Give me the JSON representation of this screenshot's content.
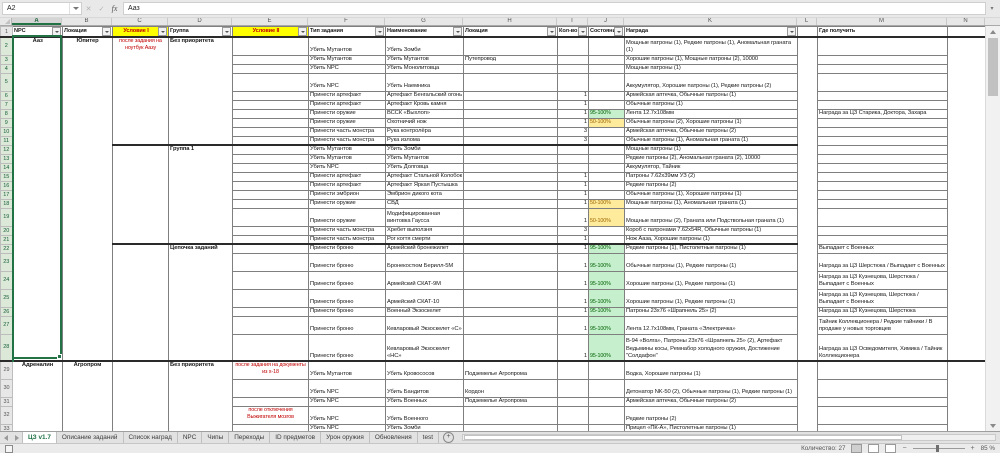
{
  "formula_bar": {
    "name_box": "A2",
    "formula": "Ааз",
    "fx_label": "fx",
    "cancel_label": "✕",
    "confirm_label": "✓",
    "expand_label": "▾"
  },
  "sheet": {
    "column_letters": [
      "A",
      "B",
      "C",
      "D",
      "E",
      "F",
      "G",
      "H",
      "I",
      "J",
      "K",
      "L",
      "M",
      "N"
    ],
    "selected_letter": "A",
    "headers": [
      {
        "label": "NPC",
        "filter": true
      },
      {
        "label": "Локация",
        "filter": true
      },
      {
        "label": "Условие I",
        "filter": true,
        "yellow": true
      },
      {
        "label": "Группа",
        "filter": true
      },
      {
        "label": "Условие II",
        "filter": true,
        "yellow": true
      },
      {
        "label": "Тип задания",
        "filter": true
      },
      {
        "label": "Наименование",
        "filter": true
      },
      {
        "label": "Локация",
        "filter": true
      },
      {
        "label": "Кол-во",
        "filter": true
      },
      {
        "label": "Состояние",
        "filter": true
      },
      {
        "label": "Награда",
        "filter": true
      },
      {
        "label": "",
        "filter": false
      },
      {
        "label": "Где получить",
        "filter": false
      },
      {
        "label": "",
        "filter": false
      }
    ],
    "colors": {
      "accent_green": "#217346",
      "state_good_bg": "#C6EFCE",
      "state_good_text": "#006100",
      "state_neutral_bg": "#FFEB9C",
      "state_neutral_text": "#9C6500",
      "condition_text": "#C00000",
      "header_highlight": "#FFFF00"
    },
    "rows": [
      {
        "n": 2,
        "h": 2,
        "top": "block",
        "a": "Ааз",
        "b": "Юпитер",
        "c": "после задания на ноутбук Аазу",
        "d": "Без приоритета",
        "f": "Убить Мутантов",
        "g": "Убить Зомби",
        "k": "Мощные патроны (1), Редкие патроны (1), Аномальная граната (1)"
      },
      {
        "n": 3,
        "f": "Убить Мутантов",
        "g": "Убить Мутантов",
        "loc": "Путепровод",
        "k": "Хорошие патроны (1), Мощные патроны (2), 10000"
      },
      {
        "n": 4,
        "f": "Убить NPC",
        "g": "Убить Монолитовца",
        "k": "Мощные патроны (1)"
      },
      {
        "n": 5,
        "h": 2,
        "f": "Убить NPC",
        "g": "Убить Наемника",
        "k": "Аккумулятор, Хорошие патроны (1), Редкие патроны (2)"
      },
      {
        "n": 6,
        "f": "Принести артефакт",
        "g": "Артефакт Бенгальский огонь",
        "qty": "1",
        "k": "Армейская аптечка, Обычные патроны (1)"
      },
      {
        "n": 7,
        "f": "Принести артефакт",
        "g": "Артефакт Кровь камня",
        "qty": "1",
        "k": "Обычные патроны (1)"
      },
      {
        "n": 8,
        "f": "Принести оружие",
        "g": "ВССК «Выхлоп»",
        "qty": "1",
        "state": "95-100%",
        "stc": "green",
        "k": "Лента 12.7x108мм",
        "m": "Награда за ЦЗ Старика, Доктора, Захара"
      },
      {
        "n": 9,
        "f": "Принести оружие",
        "g": "Охотничий нож",
        "qty": "1",
        "state": "50-100%",
        "stc": "orange",
        "k": "Обычные патроны (2), Хорошие патроны (1)"
      },
      {
        "n": 10,
        "f": "Принести часть монстра",
        "g": "Рука контролёра",
        "qty": "3",
        "k": "Армейская аптечка, Обычные патроны (2)"
      },
      {
        "n": 11,
        "f": "Принести часть монстра",
        "g": "Рука излома",
        "qty": "3",
        "k": "Обычные патроны (1), Аномальная граната (1)"
      },
      {
        "n": 12,
        "top": "group",
        "d": "Группа 1",
        "f": "Убить Мутантов",
        "g": "Убить Зомби",
        "k": "Мощные патроны (1)"
      },
      {
        "n": 13,
        "f": "Убить Мутантов",
        "g": "Убить Мутантов",
        "k": "Редкие патроны (2), Аномальная граната (2), 10000"
      },
      {
        "n": 14,
        "f": "Убить NPC",
        "g": "Убить Долговца",
        "k": "Аккумулятор, Тайник"
      },
      {
        "n": 15,
        "f": "Принести артефакт",
        "g": "Артефакт Стальной Колобок",
        "qty": "1",
        "k": "Патроны 7.62x39мм УЗ (2)"
      },
      {
        "n": 16,
        "f": "Принести артефакт",
        "g": "Артефакт Яркая Пустышка",
        "qty": "1",
        "k": "Редкие патроны (2)"
      },
      {
        "n": 17,
        "f": "Принести эмбрион",
        "g": "Эмбрион дикого кота",
        "qty": "1",
        "k": "Обычные патроны (1), Хорошие патроны (1)"
      },
      {
        "n": 18,
        "f": "Принести оружие",
        "g": "СВД",
        "qty": "1",
        "state": "50-100%",
        "stc": "orange",
        "k": "Мощные патроны (1), Аномальная граната (1)"
      },
      {
        "n": 19,
        "h": 2,
        "f": "Принести оружие",
        "g": "Модифицированная винтовка Гаусса",
        "qty": "1",
        "state": "50-100%",
        "stc": "orange",
        "k": "Мощные патроны (2), Граната или Подствольная граната (1)"
      },
      {
        "n": 20,
        "f": "Принести часть монстра",
        "g": "Хребет выползня",
        "qty": "3",
        "k": "Короб с патронами 7.62x54R, Обычные патроны (1)"
      },
      {
        "n": 21,
        "f": "Принести часть монстра",
        "g": "Рог когтя смерти",
        "qty": "1",
        "k": "Нож Ааза, Хорошие патроны (1)"
      },
      {
        "n": 22,
        "top": "group",
        "d": "Цепочка заданий",
        "f": "Принести броню",
        "g": "Армейский бронежилет",
        "qty": "1",
        "state": "95-100%",
        "stc": "green",
        "k": "Редкие патроны (1), Пистолетные патроны (1)",
        "m": "Выпадает с Военных"
      },
      {
        "n": 23,
        "h": 2,
        "f": "Принести броню",
        "g": "Бронекостюм Берилл-5М",
        "qty": "1",
        "state": "95-100%",
        "stc": "green",
        "k": "Обычные патроны (1), Редкие патроны (1)",
        "m": "Награда за ЦЗ Шерстюка / Выпадает с Военных"
      },
      {
        "n": 24,
        "h": 2,
        "f": "Принести броню",
        "g": "Армейский СКАТ-9М",
        "qty": "1",
        "state": "95-100%",
        "stc": "green",
        "k": "Хорошие патроны (1), Редкие патроны (1)",
        "m": "Награда за ЦЗ Кузнецова, Шерстюка / Выпадает с Военных"
      },
      {
        "n": 25,
        "h": 2,
        "f": "Принести броню",
        "g": "Армейский СКАТ-10",
        "qty": "1",
        "state": "95-100%",
        "stc": "green",
        "k": "Хорошие патроны (1), Редкие патроны (1)",
        "m": "Награда за ЦЗ Кузнецова, Шерстюка / Выпадает с Военных"
      },
      {
        "n": 26,
        "f": "Принести броню",
        "g": "Военный Экзоскелет",
        "qty": "1",
        "state": "95-100%",
        "stc": "green",
        "k": "Патроны 23x76 «Шрапнель 25» (2)",
        "m": "Награда за ЦЗ Кузнецова, Шерстюка"
      },
      {
        "n": 27,
        "h": 2,
        "f": "Принести броню",
        "g": "Кевларовый Экзоскелет «С»",
        "qty": "1",
        "state": "95-100%",
        "stc": "green",
        "k": "Лента 12.7x108мм, Граната «Электричка»",
        "m": "Тайник Коллекционера / Редкие тайники / В продаже у новых торговцев"
      },
      {
        "n": 28,
        "h": 3,
        "f": "Принести броню",
        "g": "Кевларовый Экзоскелет «НС»",
        "qty": "1",
        "state": "95-100%",
        "stc": "green",
        "k": "В-94 «Волга», Патроны 23x76 «Шрапнель 25» (2), Артефакт Ведьмины косы, Ремнабор холодного оружия, Достижение \"Солдафон\"",
        "m": "Награда за ЦЗ Осведомителя, Химика / Тайник Коллекционера"
      },
      {
        "n": 29,
        "h": 2,
        "top": "block",
        "a": "Адреналин",
        "b": "Агропром",
        "d": "Без приоритета",
        "e": "после задания на документы из х-18",
        "f": "Убить Мутантов",
        "g": "Убить Кровососов",
        "loc": "Подземелье Агропрома",
        "k": "Водка, Хорошие патроны (1)"
      },
      {
        "n": 30,
        "h": 2,
        "f": "Убить NPC",
        "g": "Убить Бандитов",
        "loc": "Кордон",
        "k": "Детонатор NK-50 (2), Обычные патроны (1), Редкие патроны (1)"
      },
      {
        "n": 31,
        "f": "Убить NPC",
        "g": "Убить Военных",
        "loc": "Подземелье Агропрома",
        "k": "Армейская аптечка, Обычные патроны (2)"
      },
      {
        "n": 32,
        "h": 2,
        "e": "после отключения Выжигателя мозгов",
        "f": "Убить NPC",
        "g": "Убить Военного",
        "k": "Редкие патроны (2)"
      },
      {
        "n": 33,
        "f": "Убить NPC",
        "g": "Убить Зомби",
        "k": "Прицел «ПК-А», Пистолетные патроны (1)"
      }
    ],
    "selection": {
      "range_rows": [
        2,
        28
      ],
      "column": "A"
    }
  },
  "tabs": {
    "items": [
      {
        "label": "ЦЗ v1.7",
        "active": true
      },
      {
        "label": "Описание заданий"
      },
      {
        "label": "Список наград"
      },
      {
        "label": "NPC"
      },
      {
        "label": "Чипы"
      },
      {
        "label": "Переходы"
      },
      {
        "label": "ID предметов"
      },
      {
        "label": "Урон оружия"
      },
      {
        "label": "Обновления"
      },
      {
        "label": "test"
      }
    ],
    "add_label": "+"
  },
  "status_bar": {
    "count": "Количество: 27",
    "zoom_out": "−",
    "zoom_in": "+",
    "zoom_level": "85 %"
  }
}
